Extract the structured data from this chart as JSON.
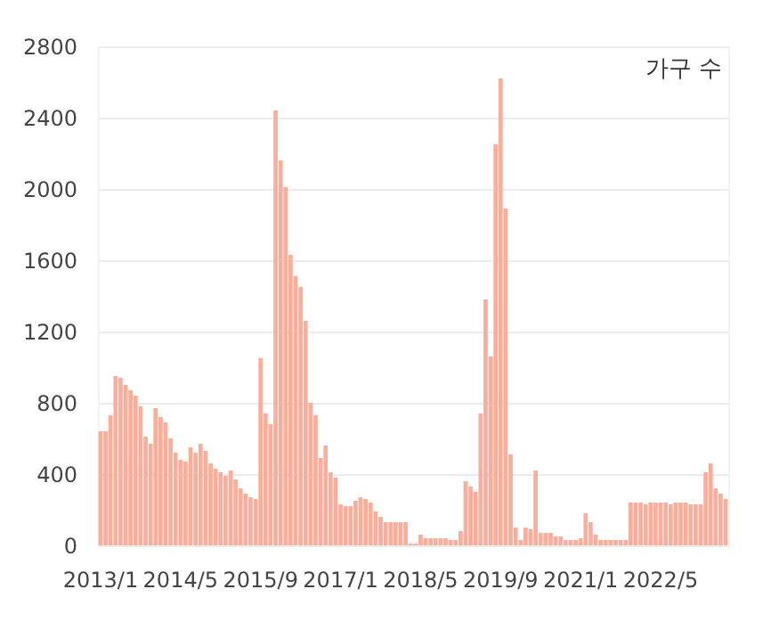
{
  "chart_data": {
    "type": "bar",
    "ylabel": "가구 수",
    "categories": [
      "2013/1",
      null,
      null,
      null,
      null,
      null,
      null,
      null,
      null,
      null,
      null,
      null,
      null,
      null,
      null,
      null,
      "2014/5",
      null,
      null,
      null,
      null,
      null,
      null,
      null,
      null,
      null,
      null,
      null,
      null,
      null,
      null,
      null,
      "2015/9",
      null,
      null,
      null,
      null,
      null,
      null,
      null,
      null,
      null,
      null,
      null,
      null,
      null,
      null,
      null,
      "2017/1",
      null,
      null,
      null,
      null,
      null,
      null,
      null,
      null,
      null,
      null,
      null,
      null,
      null,
      null,
      null,
      "2018/5",
      null,
      null,
      null,
      null,
      null,
      null,
      null,
      null,
      null,
      null,
      null,
      null,
      null,
      null,
      null,
      "2019/9",
      null,
      null,
      null,
      null,
      null,
      null,
      null,
      null,
      null,
      null,
      null,
      null,
      null,
      null,
      null,
      "2021/1",
      null,
      null,
      null,
      null,
      null,
      null,
      null,
      null,
      null,
      null,
      null,
      null,
      null,
      null,
      null,
      "2022/5",
      null,
      null,
      null,
      null,
      null,
      null,
      null,
      null,
      null,
      null,
      null,
      null,
      null
    ],
    "series": [
      {
        "color": "#f8ae9b",
        "values": [
          640,
          640,
          730,
          950,
          940,
          900,
          870,
          840,
          780,
          610,
          570,
          770,
          720,
          690,
          600,
          520,
          480,
          470,
          550,
          520,
          570,
          530,
          460,
          430,
          410,
          390,
          420,
          370,
          320,
          290,
          270,
          260,
          1050,
          740,
          680,
          2440,
          2160,
          2010,
          1630,
          1510,
          1450,
          1260,
          800,
          730,
          490,
          560,
          410,
          380,
          230,
          220,
          220,
          250,
          270,
          260,
          240,
          190,
          160,
          130,
          130,
          130,
          130,
          130,
          10,
          10,
          60,
          40,
          40,
          40,
          40,
          40,
          30,
          30,
          80,
          360,
          330,
          300,
          740,
          1380,
          1060,
          2250,
          2620,
          1890,
          510,
          100,
          30,
          100,
          90,
          420,
          70,
          70,
          70,
          50,
          50,
          30,
          30,
          30,
          40,
          180,
          130,
          60,
          30,
          30,
          30,
          30,
          30,
          30,
          240,
          240,
          240,
          230,
          240,
          240,
          240,
          240,
          230,
          240,
          240,
          240,
          230,
          230,
          230,
          410,
          460,
          320,
          290,
          260
        ]
      }
    ],
    "ylim": [
      0,
      2800
    ],
    "yticks": [
      0,
      400,
      800,
      1200,
      1600,
      2000,
      2400,
      2800
    ],
    "grid": "y"
  }
}
